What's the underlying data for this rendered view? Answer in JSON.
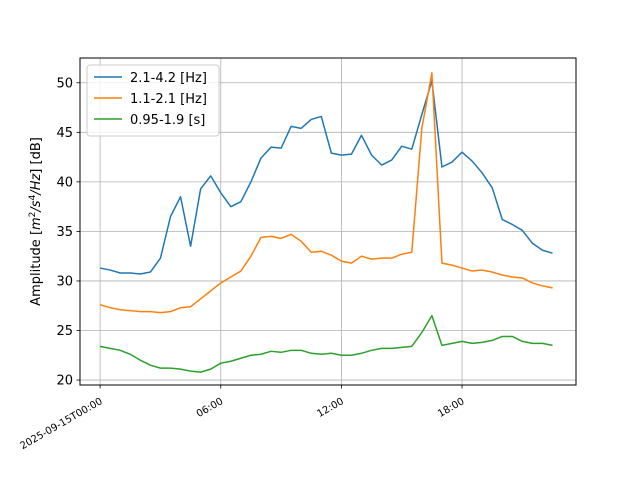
{
  "chart_data": {
    "type": "line",
    "xlabel": "",
    "ylabel_parts": {
      "prefix": "Amplitude [",
      "unit_m": "m",
      "unit_m_sup": "2",
      "unit_s": "/s",
      "unit_s_sup": "4",
      "unit_hz": "/Hz",
      "suffix": "] [dB]"
    },
    "x": [
      "2025-09-15T00:00",
      "2025-09-15T00:30",
      "2025-09-15T01:00",
      "2025-09-15T01:30",
      "2025-09-15T02:00",
      "2025-09-15T02:30",
      "2025-09-15T03:00",
      "2025-09-15T03:30",
      "2025-09-15T04:00",
      "2025-09-15T04:30",
      "2025-09-15T05:00",
      "2025-09-15T05:30",
      "2025-09-15T06:00",
      "2025-09-15T06:30",
      "2025-09-15T07:00",
      "2025-09-15T07:30",
      "2025-09-15T08:00",
      "2025-09-15T08:30",
      "2025-09-15T09:00",
      "2025-09-15T09:30",
      "2025-09-15T10:00",
      "2025-09-15T10:30",
      "2025-09-15T11:00",
      "2025-09-15T11:30",
      "2025-09-15T12:00",
      "2025-09-15T12:30",
      "2025-09-15T13:00",
      "2025-09-15T13:30",
      "2025-09-15T14:00",
      "2025-09-15T14:30",
      "2025-09-15T15:00",
      "2025-09-15T15:30",
      "2025-09-15T16:00",
      "2025-09-15T16:30",
      "2025-09-15T17:00",
      "2025-09-15T17:30",
      "2025-09-15T18:00",
      "2025-09-15T18:30",
      "2025-09-15T19:00",
      "2025-09-15T19:30",
      "2025-09-15T20:00",
      "2025-09-15T20:30",
      "2025-09-15T21:00",
      "2025-09-15T21:30",
      "2025-09-15T22:00",
      "2025-09-15T22:30"
    ],
    "series": [
      {
        "name": "2.1-4.2 [Hz]",
        "color": "#1f77b4",
        "values": [
          31.3,
          31.1,
          30.8,
          30.8,
          30.7,
          30.9,
          32.3,
          36.5,
          38.5,
          33.5,
          39.3,
          40.6,
          38.9,
          37.5,
          38.0,
          40.0,
          42.4,
          43.5,
          43.4,
          45.6,
          45.4,
          46.3,
          46.6,
          42.9,
          42.7,
          42.8,
          44.7,
          42.7,
          41.7,
          42.2,
          43.6,
          43.3,
          46.8,
          50.2,
          41.5,
          42.0,
          43.0,
          42.1,
          40.9,
          39.4,
          36.2,
          35.7,
          35.1,
          33.8,
          33.1,
          32.8
        ]
      },
      {
        "name": "1.1-2.1 [Hz]",
        "color": "#ff7f0e",
        "values": [
          27.6,
          27.3,
          27.1,
          27.0,
          26.9,
          26.9,
          26.8,
          26.9,
          27.3,
          27.4,
          28.2,
          29.0,
          29.8,
          30.4,
          31.0,
          32.5,
          34.4,
          34.5,
          34.3,
          34.7,
          34.0,
          32.9,
          33.0,
          32.6,
          32.0,
          31.8,
          32.5,
          32.2,
          32.3,
          32.3,
          32.7,
          32.9,
          45.4,
          51.0,
          31.8,
          31.6,
          31.3,
          31.0,
          31.1,
          30.9,
          30.6,
          30.4,
          30.3,
          29.8,
          29.5,
          29.3
        ]
      },
      {
        "name": "0.95-1.9 [s]",
        "color": "#2ca02c",
        "values": [
          23.4,
          23.2,
          23.0,
          22.6,
          22.0,
          21.5,
          21.2,
          21.2,
          21.1,
          20.9,
          20.8,
          21.1,
          21.7,
          21.9,
          22.2,
          22.5,
          22.6,
          22.9,
          22.8,
          23.0,
          23.0,
          22.7,
          22.6,
          22.7,
          22.5,
          22.5,
          22.7,
          23.0,
          23.2,
          23.2,
          23.3,
          23.4,
          24.8,
          26.5,
          23.5,
          23.7,
          23.9,
          23.7,
          23.8,
          24.0,
          24.4,
          24.4,
          23.9,
          23.7,
          23.7,
          23.5
        ]
      }
    ],
    "xlim": [
      "2025-09-14T23:00",
      "2025-09-15T23:40"
    ],
    "ylim": [
      19.5,
      52.5
    ],
    "yticks": [
      20,
      25,
      30,
      35,
      40,
      45,
      50
    ],
    "xtick_labels": [
      "2025-09-15T00:00",
      "06:00",
      "12:00",
      "18:00"
    ],
    "xtick_positions": [
      "2025-09-15T00:00",
      "2025-09-15T06:00",
      "2025-09-15T12:00",
      "2025-09-15T18:00"
    ],
    "grid": true,
    "legend": "top-left"
  }
}
